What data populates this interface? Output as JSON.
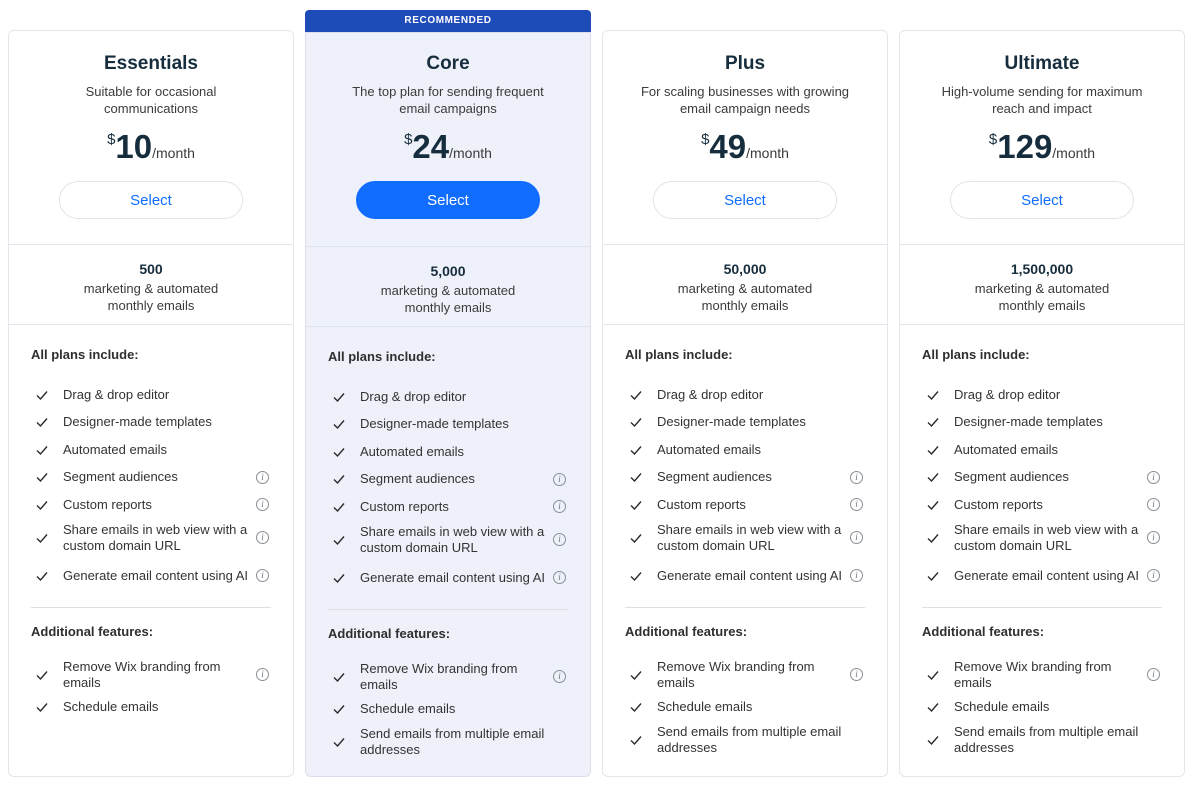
{
  "badge": "RECOMMENDED",
  "sections": {
    "all_plans": "All plans include:",
    "additional": "Additional features:"
  },
  "plans": [
    {
      "name": "Essentials",
      "desc": "Suitable for occasional communications",
      "currency": "$",
      "amount": "10",
      "period": "/month",
      "select": "Select",
      "emails_count": "500",
      "emails_label": "marketing & automated monthly emails",
      "features": [
        {
          "label": "Drag & drop editor",
          "info": false
        },
        {
          "label": "Designer-made templates",
          "info": false
        },
        {
          "label": "Automated emails",
          "info": false
        },
        {
          "label": "Segment audiences",
          "info": true
        },
        {
          "label": "Custom reports",
          "info": true
        },
        {
          "label": "Share emails in web view with a custom domain URL",
          "info": true
        },
        {
          "label": "Generate email content using AI",
          "info": true
        }
      ],
      "additional": [
        {
          "label": "Remove Wix branding from emails",
          "info": true
        },
        {
          "label": "Schedule emails",
          "info": false
        }
      ]
    },
    {
      "name": "Core",
      "desc": "The top plan for sending frequent email campaigns",
      "currency": "$",
      "amount": "24",
      "period": "/month",
      "select": "Select",
      "emails_count": "5,000",
      "emails_label": "marketing & automated monthly emails",
      "features": [
        {
          "label": "Drag & drop editor",
          "info": false
        },
        {
          "label": "Designer-made templates",
          "info": false
        },
        {
          "label": "Automated emails",
          "info": false
        },
        {
          "label": "Segment audiences",
          "info": true
        },
        {
          "label": "Custom reports",
          "info": true
        },
        {
          "label": "Share emails in web view with a custom domain URL",
          "info": true
        },
        {
          "label": "Generate email content using AI",
          "info": true
        }
      ],
      "additional": [
        {
          "label": "Remove Wix branding from emails",
          "info": true
        },
        {
          "label": "Schedule emails",
          "info": false
        },
        {
          "label": "Send emails from multiple email addresses",
          "info": false
        }
      ]
    },
    {
      "name": "Plus",
      "desc": "For scaling businesses with growing email campaign needs",
      "currency": "$",
      "amount": "49",
      "period": "/month",
      "select": "Select",
      "emails_count": "50,000",
      "emails_label": "marketing & automated monthly emails",
      "features": [
        {
          "label": "Drag & drop editor",
          "info": false
        },
        {
          "label": "Designer-made templates",
          "info": false
        },
        {
          "label": "Automated emails",
          "info": false
        },
        {
          "label": "Segment audiences",
          "info": true
        },
        {
          "label": "Custom reports",
          "info": true
        },
        {
          "label": "Share emails in web view with a custom domain URL",
          "info": true
        },
        {
          "label": "Generate email content using AI",
          "info": true
        }
      ],
      "additional": [
        {
          "label": "Remove Wix branding from emails",
          "info": true
        },
        {
          "label": "Schedule emails",
          "info": false
        },
        {
          "label": "Send emails from multiple email addresses",
          "info": false
        }
      ]
    },
    {
      "name": "Ultimate",
      "desc": "High-volume sending for maximum reach and impact",
      "currency": "$",
      "amount": "129",
      "period": "/month",
      "select": "Select",
      "emails_count": "1,500,000",
      "emails_label": "marketing & automated monthly emails",
      "features": [
        {
          "label": "Drag & drop editor",
          "info": false
        },
        {
          "label": "Designer-made templates",
          "info": false
        },
        {
          "label": "Automated emails",
          "info": false
        },
        {
          "label": "Segment audiences",
          "info": true
        },
        {
          "label": "Custom reports",
          "info": true
        },
        {
          "label": "Share emails in web view with a custom domain URL",
          "info": true
        },
        {
          "label": "Generate email content using AI",
          "info": true
        }
      ],
      "additional": [
        {
          "label": "Remove Wix branding from emails",
          "info": true
        },
        {
          "label": "Schedule emails",
          "info": false
        },
        {
          "label": "Send emails from multiple email addresses",
          "info": false
        }
      ]
    }
  ],
  "colors": {
    "accent": "#116dff",
    "badge": "#1d4cb8",
    "featured_bg": "#eef1f9",
    "border": "#e3e6ea"
  },
  "icons": {
    "check": "check-icon",
    "info": "info-icon"
  }
}
